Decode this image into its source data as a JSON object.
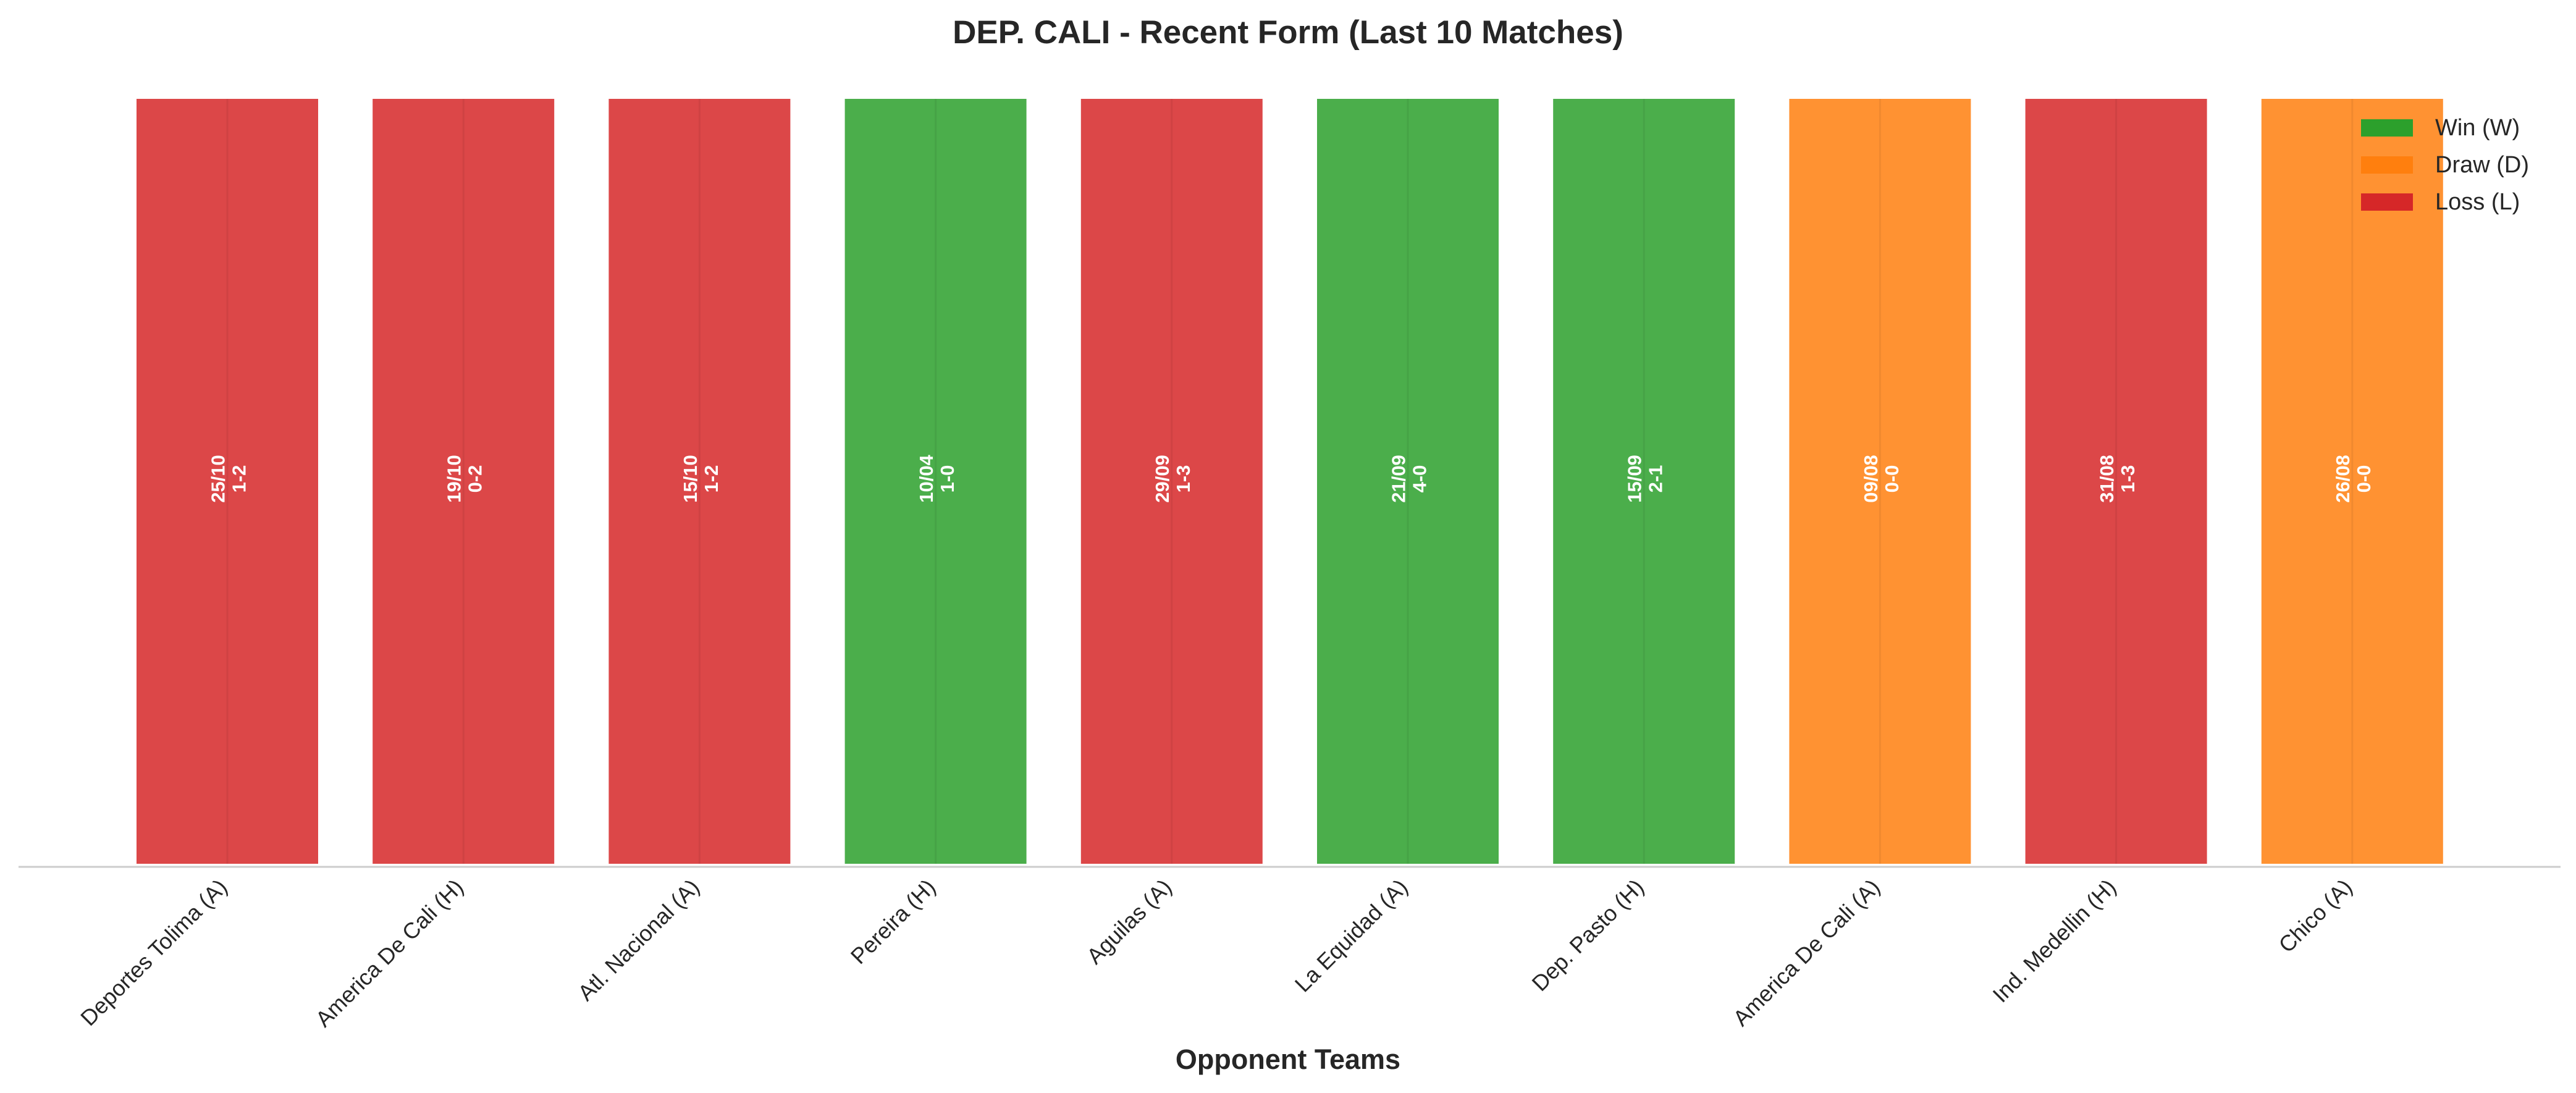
{
  "chart_data": {
    "type": "bar",
    "title": "DEP. CALI - Recent Form (Last 10 Matches)",
    "xlabel": "Opponent Teams",
    "ylabel": "",
    "ylim": [
      0,
      1
    ],
    "grid": false,
    "legend_position": "top-right",
    "colors": {
      "W": "#2ca02c",
      "D": "#ff7f0e",
      "L": "#d62728"
    },
    "legend": [
      {
        "key": "W",
        "label": "Win (W)"
      },
      {
        "key": "D",
        "label": "Draw (D)"
      },
      {
        "key": "L",
        "label": "Loss (L)"
      }
    ],
    "categories": [
      "Deportes Tolima (A)",
      "America De Cali (H)",
      "Atl. Nacional (A)",
      "Pereira (H)",
      "Aguilas (A)",
      "La Equidad (A)",
      "Dep. Pasto (H)",
      "America De Cali (A)",
      "Ind. Medellin (H)",
      "Chico (A)"
    ],
    "values": [
      1,
      1,
      1,
      1,
      1,
      1,
      1,
      1,
      1,
      1
    ],
    "results": [
      "L",
      "L",
      "L",
      "W",
      "L",
      "W",
      "W",
      "D",
      "L",
      "D"
    ],
    "dates": [
      "25/10",
      "19/10",
      "15/10",
      "10/04",
      "29/09",
      "21/09",
      "15/09",
      "09/08",
      "31/08",
      "26/08"
    ],
    "scores": [
      "1-2",
      "0-2",
      "1-2",
      "1-0",
      "1-3",
      "4-0",
      "2-1",
      "0-0",
      "1-3",
      "0-0"
    ]
  }
}
